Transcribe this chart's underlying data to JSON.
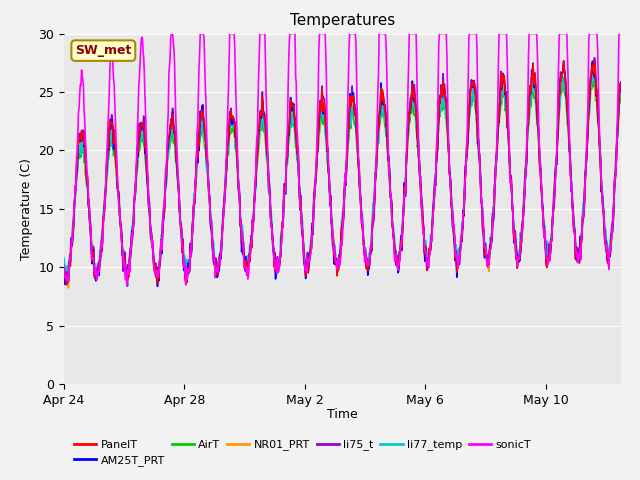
{
  "title": "Temperatures",
  "xlabel": "Time",
  "ylabel": "Temperature (C)",
  "ylim": [
    0,
    30
  ],
  "yticks": [
    0,
    5,
    10,
    15,
    20,
    25,
    30
  ],
  "annotation": "SW_met",
  "series": {
    "PanelT": {
      "color": "#ff0000",
      "lw": 1.2
    },
    "AM25T_PRT": {
      "color": "#0000ff",
      "lw": 1.2
    },
    "AirT": {
      "color": "#00cc00",
      "lw": 1.2
    },
    "NR01_PRT": {
      "color": "#ff9900",
      "lw": 1.2
    },
    "li75_t": {
      "color": "#9900cc",
      "lw": 1.2
    },
    "li77_temp": {
      "color": "#00cccc",
      "lw": 1.2
    },
    "sonicT": {
      "color": "#ff00ff",
      "lw": 1.2
    }
  },
  "xtick_dates": [
    "Apr 24",
    "Apr 28",
    "May 2",
    "May 6",
    "May 10"
  ],
  "xtick_days": [
    0,
    4,
    8,
    12,
    16
  ],
  "n_days": 18.5,
  "bg_color": "#e8e8e8",
  "fig_bg": "#f2f2f2",
  "title_fontsize": 11,
  "axis_fontsize": 9,
  "legend_fontsize": 8
}
